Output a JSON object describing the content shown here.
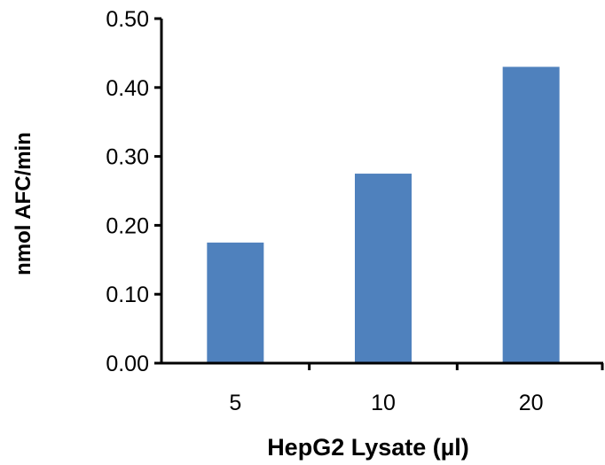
{
  "chart_data": {
    "type": "bar",
    "categories": [
      "5",
      "10",
      "20"
    ],
    "values": [
      0.175,
      0.275,
      0.43
    ],
    "xlabel": "HepG2 Lysate (µl)",
    "ylabel": "nmol AFC/min",
    "ylim": [
      0,
      0.5
    ],
    "yticks": [
      "0.00",
      "0.10",
      "0.20",
      "0.30",
      "0.40",
      "0.50"
    ],
    "grid": false,
    "legend": "none",
    "bar_color": "#4f81bd",
    "axis_color": "#000000"
  }
}
